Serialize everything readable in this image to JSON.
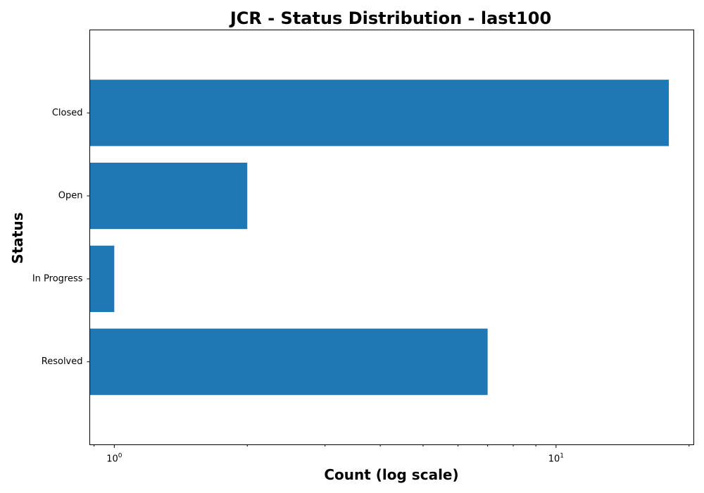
{
  "chart_data": {
    "type": "bar",
    "orientation": "horizontal",
    "title": "JCR - Status Distribution - last100",
    "xlabel": "Count (log scale)",
    "ylabel": "Status",
    "xscale": "log",
    "xlim": [
      0.88,
      20.5
    ],
    "grid": false,
    "categories": [
      "Closed",
      "Open",
      "In Progress",
      "Resolved"
    ],
    "values": [
      18,
      2,
      1,
      7
    ],
    "color": "#1f77b4",
    "x_ticks": [
      {
        "value": 1,
        "base": "10",
        "exponent": "0"
      },
      {
        "value": 10,
        "base": "10",
        "exponent": "1"
      }
    ]
  }
}
